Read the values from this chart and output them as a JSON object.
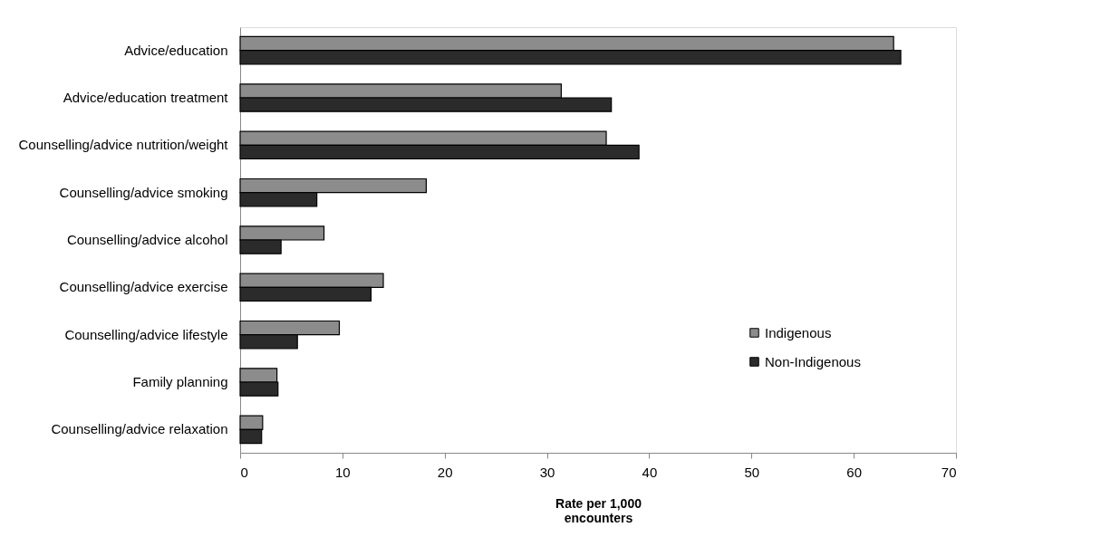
{
  "chart_data": {
    "type": "bar",
    "orientation": "horizontal",
    "xlabel": "Rate per 1,000 encounters",
    "categories": [
      "Advice/education",
      "Advice/education treatment",
      "Counselling/advice nutrition/weight",
      "Counselling/advice smoking",
      "Counselling/advice alcohol",
      "Counselling/advice exercise",
      "Counselling/advice lifestyle",
      "Family planning",
      "Counselling/advice relaxation"
    ],
    "series": [
      {
        "name": "Indigenous",
        "color": "#8c8c8c",
        "values": [
          63.9,
          31.4,
          35.8,
          18.2,
          8.2,
          14.0,
          9.7,
          3.6,
          2.2
        ]
      },
      {
        "name": "Non-Indigenous",
        "color": "#2b2b2b",
        "values": [
          64.6,
          36.3,
          39.0,
          7.5,
          4.0,
          12.8,
          5.6,
          3.7,
          2.1
        ]
      }
    ],
    "xlim": [
      0,
      70
    ],
    "xticks": [
      0,
      10,
      20,
      30,
      40,
      50,
      60,
      70
    ],
    "grid": false,
    "legend": "right"
  }
}
